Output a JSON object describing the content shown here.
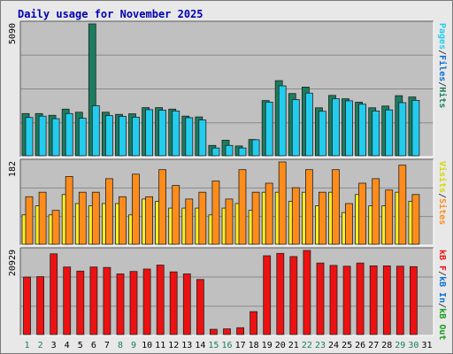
{
  "title": "Daily usage for November 2025",
  "chart_data": [
    {
      "type": "bar",
      "panel": "top",
      "categories": [
        "1",
        "2",
        "3",
        "4",
        "5",
        "6",
        "7",
        "8",
        "9",
        "10",
        "11",
        "12",
        "13",
        "14",
        "15",
        "16",
        "17",
        "18",
        "19",
        "20",
        "21",
        "22",
        "23",
        "24",
        "25",
        "26",
        "27",
        "28",
        "29",
        "30",
        "31"
      ],
      "series": [
        {
          "name": "Hits",
          "color": "#1b7d5e",
          "values": [
            1630,
            1630,
            1560,
            1800,
            1680,
            5090,
            1680,
            1600,
            1620,
            1860,
            1860,
            1800,
            1530,
            1500,
            400,
            600,
            380,
            630,
            2130,
            2900,
            2400,
            2650,
            1850,
            2330,
            2200,
            2070,
            1850,
            1920,
            2320,
            2270,
            null
          ]
        },
        {
          "name": "Files",
          "color": "#0d6fd4",
          "values": [
            null,
            null,
            null,
            null,
            null,
            null,
            null,
            null,
            null,
            null,
            null,
            null,
            null,
            null,
            null,
            null,
            null,
            null,
            null,
            null,
            null,
            null,
            null,
            null,
            null,
            null,
            null,
            null,
            null,
            null,
            null
          ]
        },
        {
          "name": "Pages",
          "color": "#22ccef",
          "values": [
            1480,
            1530,
            1430,
            1630,
            1450,
            1930,
            1550,
            1520,
            1490,
            1780,
            1760,
            1730,
            1470,
            1380,
            300,
            400,
            300,
            620,
            2070,
            2700,
            2170,
            2420,
            1720,
            2200,
            2120,
            1990,
            1730,
            1770,
            2050,
            2140,
            null
          ]
        }
      ],
      "ylim": [
        0,
        5090
      ],
      "ytick": "5090",
      "legend": [
        {
          "text": "Pages",
          "color": "#22ccef"
        },
        {
          "text": "/",
          "color": "#444444"
        },
        {
          "text": "Files",
          "color": "#0d6fd4"
        },
        {
          "text": "/",
          "color": "#444444"
        },
        {
          "text": "Hits",
          "color": "#1b7d5e"
        }
      ]
    },
    {
      "type": "bar",
      "panel": "middle",
      "categories": [
        "1",
        "2",
        "3",
        "4",
        "5",
        "6",
        "7",
        "8",
        "9",
        "10",
        "11",
        "12",
        "13",
        "14",
        "15",
        "16",
        "17",
        "18",
        "19",
        "20",
        "21",
        "22",
        "23",
        "24",
        "25",
        "26",
        "27",
        "28",
        "29",
        "30",
        "31"
      ],
      "series": [
        {
          "name": "Visits",
          "color": "#ffee22",
          "values": [
            65,
            85,
            65,
            110,
            90,
            85,
            90,
            90,
            65,
            100,
            95,
            80,
            80,
            80,
            65,
            80,
            90,
            75,
            115,
            115,
            95,
            115,
            85,
            115,
            70,
            110,
            85,
            85,
            115,
            95,
            null
          ]
        },
        {
          "name": "Sites",
          "color": "#ff8c1a",
          "values": [
            105,
            115,
            75,
            150,
            115,
            115,
            145,
            105,
            155,
            105,
            165,
            130,
            100,
            115,
            140,
            100,
            165,
            115,
            135,
            182,
            125,
            165,
            115,
            165,
            90,
            135,
            145,
            120,
            175,
            110,
            null
          ]
        }
      ],
      "ylim": [
        0,
        182
      ],
      "ytick": "182",
      "legend": [
        {
          "text": "Visits",
          "color": "#d6d600"
        },
        {
          "text": "/",
          "color": "#444444"
        },
        {
          "text": "Sites",
          "color": "#ff8c1a"
        }
      ]
    },
    {
      "type": "bar",
      "panel": "bottom",
      "categories": [
        "1",
        "2",
        "3",
        "4",
        "5",
        "6",
        "7",
        "8",
        "9",
        "10",
        "11",
        "12",
        "13",
        "14",
        "15",
        "16",
        "17",
        "18",
        "19",
        "20",
        "21",
        "22",
        "23",
        "24",
        "25",
        "26",
        "27",
        "28",
        "29",
        "30",
        "31"
      ],
      "series": [
        {
          "name": "KBytes",
          "color": "#ee1111",
          "values": [
            14300,
            14400,
            20100,
            16800,
            15800,
            16800,
            16700,
            15100,
            15700,
            16300,
            17300,
            15600,
            15100,
            13700,
            1300,
            1400,
            1700,
            5700,
            19600,
            20200,
            19400,
            20929,
            17800,
            17200,
            17000,
            17800,
            17100,
            17100,
            17000,
            16900,
            null
          ]
        }
      ],
      "ylim": [
        0,
        20929
      ],
      "ytick": "20929",
      "legend": [
        {
          "text": "kB F",
          "color": "#ee1111"
        },
        {
          "text": "/",
          "color": "#444444"
        },
        {
          "text": "kB In",
          "color": "#0d6fd4"
        },
        {
          "text": "/",
          "color": "#444444"
        },
        {
          "text": "kB Out",
          "color": "#1a9a1a"
        }
      ]
    }
  ],
  "x_labels": [
    {
      "text": "1",
      "color": "#1b7d5e"
    },
    {
      "text": "2",
      "color": "#1b7d5e"
    },
    {
      "text": "3",
      "color": "#000000"
    },
    {
      "text": "4",
      "color": "#000000"
    },
    {
      "text": "5",
      "color": "#000000"
    },
    {
      "text": "6",
      "color": "#000000"
    },
    {
      "text": "7",
      "color": "#000000"
    },
    {
      "text": "8",
      "color": "#1b7d5e"
    },
    {
      "text": "9",
      "color": "#1b7d5e"
    },
    {
      "text": "10",
      "color": "#000000"
    },
    {
      "text": "11",
      "color": "#000000"
    },
    {
      "text": "12",
      "color": "#000000"
    },
    {
      "text": "13",
      "color": "#000000"
    },
    {
      "text": "14",
      "color": "#000000"
    },
    {
      "text": "15",
      "color": "#1b7d5e"
    },
    {
      "text": "16",
      "color": "#1b7d5e"
    },
    {
      "text": "17",
      "color": "#000000"
    },
    {
      "text": "18",
      "color": "#000000"
    },
    {
      "text": "19",
      "color": "#000000"
    },
    {
      "text": "20",
      "color": "#000000"
    },
    {
      "text": "21",
      "color": "#000000"
    },
    {
      "text": "22",
      "color": "#1b7d5e"
    },
    {
      "text": "23",
      "color": "#1b7d5e"
    },
    {
      "text": "24",
      "color": "#000000"
    },
    {
      "text": "25",
      "color": "#000000"
    },
    {
      "text": "26",
      "color": "#000000"
    },
    {
      "text": "27",
      "color": "#000000"
    },
    {
      "text": "28",
      "color": "#000000"
    },
    {
      "text": "29",
      "color": "#1b7d5e"
    },
    {
      "text": "30",
      "color": "#1b7d5e"
    },
    {
      "text": "31",
      "color": "#000000"
    }
  ]
}
